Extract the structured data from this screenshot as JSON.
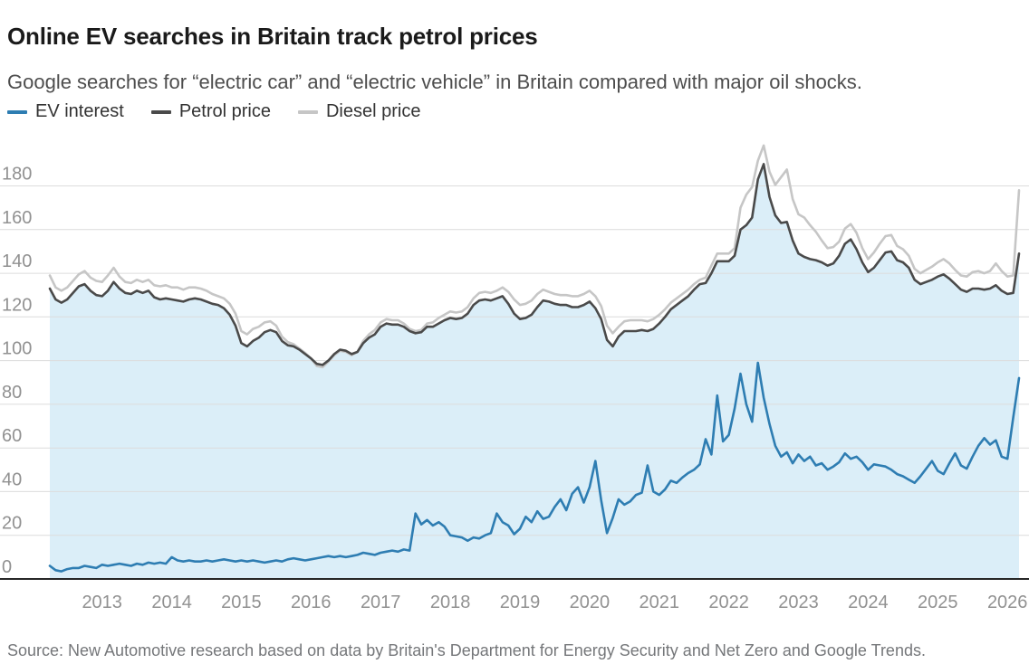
{
  "header": {
    "title": "Online EV searches in Britain track petrol prices",
    "subtitle": "Google searches for “electric car” and “electric vehicle” in Britain compared with major oil shocks."
  },
  "legend": [
    {
      "label": "EV interest",
      "color": "#2e7db2"
    },
    {
      "label": "Petrol price",
      "color": "#4a4a4a"
    },
    {
      "label": "Diesel price",
      "color": "#c6c6c6"
    }
  ],
  "source": "Source: New Automotive research based on data by Britain's Department for Energy Security and Net Zero and Google Trends.",
  "chart_data": {
    "type": "line",
    "title": "Online EV searches in Britain track petrol prices",
    "subtitle": "Google searches for “electric car” and “electric vehicle” in Britain compared with major oil shocks.",
    "x_start": "2012-04",
    "x_end": "2026-03",
    "interval": "monthly",
    "x_tick_labels": [
      "2013",
      "2014",
      "2015",
      "2016",
      "2017",
      "2018",
      "2019",
      "2020",
      "2021",
      "2022",
      "2023",
      "2024",
      "2025",
      "2026"
    ],
    "y_ticks": [
      0,
      20,
      40,
      60,
      80,
      100,
      120,
      140,
      160,
      180
    ],
    "ylim": [
      0,
      201
    ],
    "grid": true,
    "legend_position": "top",
    "grid_color": "#dcdcdc",
    "axis_line_color": "#262626",
    "tick_label_color": "#919191",
    "fill_under": "petrol",
    "fill_color": "#dbeef8",
    "series": [
      {
        "key": "ev",
        "name": "EV interest",
        "color": "#2e7db2",
        "values": [
          6,
          4,
          3.5,
          4.5,
          5,
          5,
          6,
          5.5,
          5,
          6.5,
          6,
          6.5,
          7,
          6.5,
          6,
          7,
          6.5,
          7.5,
          7,
          7.5,
          7,
          10,
          8.5,
          8,
          8.5,
          8,
          8,
          8.5,
          8,
          8.5,
          9,
          8.5,
          8,
          8.5,
          8,
          8.5,
          8,
          7.5,
          8,
          8.5,
          8,
          9,
          9.5,
          9,
          8.5,
          9,
          9.5,
          10,
          10.5,
          10,
          10.5,
          10,
          10.5,
          11,
          12,
          11.5,
          11,
          12,
          12.5,
          13,
          12.5,
          13.5,
          13,
          30,
          25,
          27,
          24.5,
          26,
          24,
          20,
          19.5,
          19,
          17.5,
          19,
          18.5,
          20,
          21,
          30,
          26,
          24.5,
          20.5,
          23,
          28.5,
          26,
          31,
          27.5,
          28.5,
          33,
          36.5,
          31.5,
          39,
          42,
          35,
          42,
          54,
          36,
          21,
          28,
          36.5,
          34,
          35.5,
          38.5,
          39.5,
          52,
          40,
          38.5,
          41,
          45,
          44,
          46.5,
          48.5,
          50,
          52.5,
          64,
          57,
          84,
          63,
          66,
          78,
          94,
          80,
          72,
          99,
          83,
          71,
          61,
          56,
          58,
          53,
          57,
          54,
          56,
          52,
          53,
          50,
          51.5,
          53.5,
          57.5,
          55,
          56,
          53.5,
          50,
          52.5,
          52,
          51.5,
          50,
          48,
          47,
          45.5,
          44,
          47,
          50.5,
          54,
          49.5,
          48,
          53,
          57.5,
          52,
          50.5,
          56,
          61,
          64.5,
          61.5,
          63.5,
          56,
          55,
          74,
          92
        ]
      },
      {
        "key": "petrol",
        "name": "Petrol price",
        "color": "#4a4a4a",
        "values": [
          133,
          128,
          126.5,
          128,
          131,
          134,
          135,
          132,
          130,
          129.5,
          132,
          136,
          133,
          131,
          130.5,
          132,
          131,
          132,
          129,
          128,
          128.5,
          128,
          127.5,
          127,
          128,
          128.5,
          128,
          127,
          126,
          125.5,
          124,
          121,
          116,
          108,
          106.5,
          109,
          110.5,
          113,
          114,
          113,
          109,
          107,
          106.5,
          105,
          103,
          101,
          98.5,
          98,
          100,
          103,
          105,
          104.5,
          103,
          104,
          108,
          110.5,
          112,
          115.5,
          117,
          116.5,
          116.5,
          115.5,
          113.5,
          112.5,
          113,
          115.5,
          115.5,
          117,
          118.5,
          119.5,
          119,
          119.5,
          121.5,
          125.5,
          127.5,
          128,
          127.5,
          128.5,
          129.5,
          126,
          121.5,
          119,
          119.5,
          121,
          124.5,
          127.5,
          127,
          126,
          125.5,
          125.5,
          124.5,
          124.5,
          125.5,
          127,
          124,
          119,
          109.5,
          106.5,
          111,
          113.5,
          113.5,
          113.5,
          114,
          113.5,
          114.5,
          117,
          120,
          123.5,
          125.5,
          127.5,
          129.5,
          132.5,
          135,
          135.5,
          140,
          145.5,
          145.5,
          145.5,
          148,
          160,
          162,
          165.5,
          183,
          190,
          175,
          166.5,
          163,
          163.5,
          155,
          149,
          147.5,
          146.5,
          146,
          145,
          143.5,
          144.5,
          148,
          153.5,
          155.5,
          151,
          145,
          140.5,
          142.5,
          146,
          149.5,
          150,
          146,
          145,
          142.5,
          137,
          135,
          136,
          137,
          138.5,
          139.5,
          137.5,
          135,
          132.5,
          131.5,
          133,
          133,
          132.5,
          133,
          134.5,
          132,
          130.5,
          131,
          149
        ]
      },
      {
        "key": "diesel",
        "name": "Diesel price",
        "color": "#c6c6c6",
        "values": [
          139,
          133.5,
          132,
          133.5,
          136.5,
          139.5,
          141,
          138,
          136.5,
          136,
          139,
          142.5,
          138.5,
          136,
          135.5,
          137,
          136,
          137,
          134.5,
          134,
          134.5,
          133.5,
          133.5,
          132.5,
          133.5,
          133.5,
          133,
          132,
          130.5,
          129.5,
          128.5,
          126,
          121.5,
          113.5,
          112,
          114.5,
          115.5,
          117.5,
          118,
          116,
          111,
          108.5,
          107.5,
          105.5,
          103.5,
          101,
          97.5,
          97,
          99.5,
          102.5,
          104.5,
          104,
          102.5,
          104,
          109,
          112,
          114,
          117.5,
          119,
          118.5,
          118.5,
          117,
          114.5,
          113.5,
          114,
          117,
          117.5,
          119.5,
          121,
          122.5,
          122,
          122.5,
          124.5,
          128.5,
          131,
          131.5,
          131,
          132,
          133.5,
          131.5,
          128,
          125.5,
          126,
          127.5,
          130.5,
          132.5,
          131.5,
          130.5,
          130,
          130,
          129.5,
          129.5,
          130.5,
          132,
          129.5,
          125,
          116,
          112.5,
          115.5,
          118,
          118.5,
          118.5,
          118.5,
          118,
          119,
          121,
          123.5,
          126.5,
          128.5,
          130.5,
          132.5,
          135,
          137,
          138,
          143.5,
          149,
          149,
          149,
          151.5,
          170,
          176,
          179.5,
          191.5,
          198.5,
          186.5,
          180.5,
          184,
          187.5,
          174,
          167,
          165.5,
          162,
          159,
          155,
          151.5,
          152,
          154.5,
          160.5,
          162.5,
          158.5,
          151.5,
          146.5,
          149.5,
          153.5,
          157,
          157.5,
          152.5,
          151,
          148,
          142,
          140,
          141.5,
          143,
          145,
          146.5,
          144.5,
          141.5,
          139,
          138.5,
          140.5,
          141,
          140,
          141,
          144.5,
          141,
          138.5,
          139,
          178
        ]
      }
    ]
  }
}
